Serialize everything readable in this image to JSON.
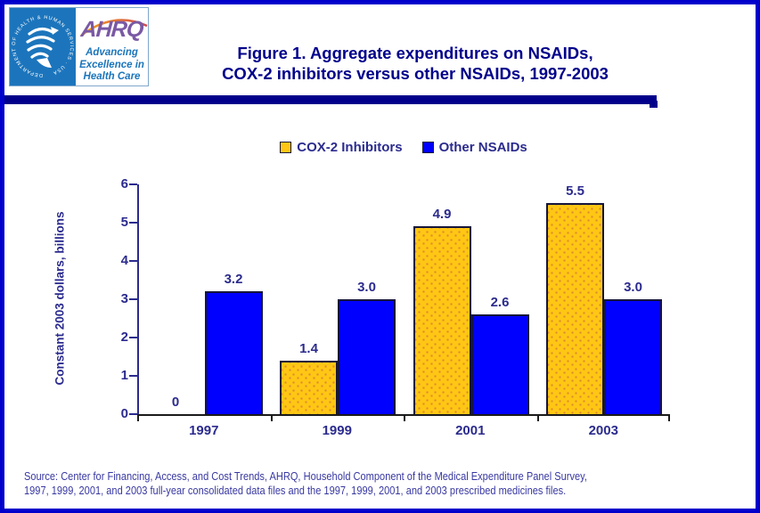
{
  "page": {
    "title_line1": "Figure 1. Aggregate expenditures on NSAIDs,",
    "title_line2": "COX-2 inhibitors versus other NSAIDs, 1997-2003",
    "source_line1": "Source: Center for Financing, Access, and Cost Trends, AHRQ, Household Component of the Medical Expenditure Panel Survey,",
    "source_line2": "1997, 1999, 2001, and 2003 full-year consolidated data files and the 1997, 1999, 2001, and 2003 prescribed medicines files.",
    "border_color": "#0000CC",
    "divider_color": "#00008B"
  },
  "logo": {
    "hhs_ring_text": "DEPARTMENT OF HEALTH & HUMAN SERVICES · USA",
    "acronym": "AHRQ",
    "tagline_line1": "Advancing",
    "tagline_line2": "Excellence in",
    "tagline_line3": "Health Care",
    "hhs_blue": "#1C75BC",
    "ahrq_purple": "#7A59A5",
    "tagline_blue": "#1B75BB"
  },
  "chart_data": {
    "type": "bar",
    "title": "Figure 1. Aggregate expenditures on NSAIDs, COX-2 inhibitors versus other NSAIDs, 1997-2003",
    "categories": [
      "1997",
      "1999",
      "2001",
      "2003"
    ],
    "series": [
      {
        "name": "COX-2 Inhibitors",
        "color": "#FFC714",
        "values": [
          0,
          1.4,
          4.9,
          5.5
        ],
        "labels": [
          "0",
          "1.4",
          "4.9",
          "5.5"
        ]
      },
      {
        "name": "Other NSAIDs",
        "color": "#0000FF",
        "values": [
          3.2,
          3.0,
          2.6,
          3.0
        ],
        "labels": [
          "3.2",
          "3.0",
          "2.6",
          "3.0"
        ]
      }
    ],
    "xlabel": "",
    "ylabel": "Constant 2003 dollars, billions",
    "ylim": [
      0,
      6
    ],
    "yticks": [
      0,
      1,
      2,
      3,
      4,
      5,
      6
    ],
    "grid": false,
    "legend_position": "top-center"
  }
}
